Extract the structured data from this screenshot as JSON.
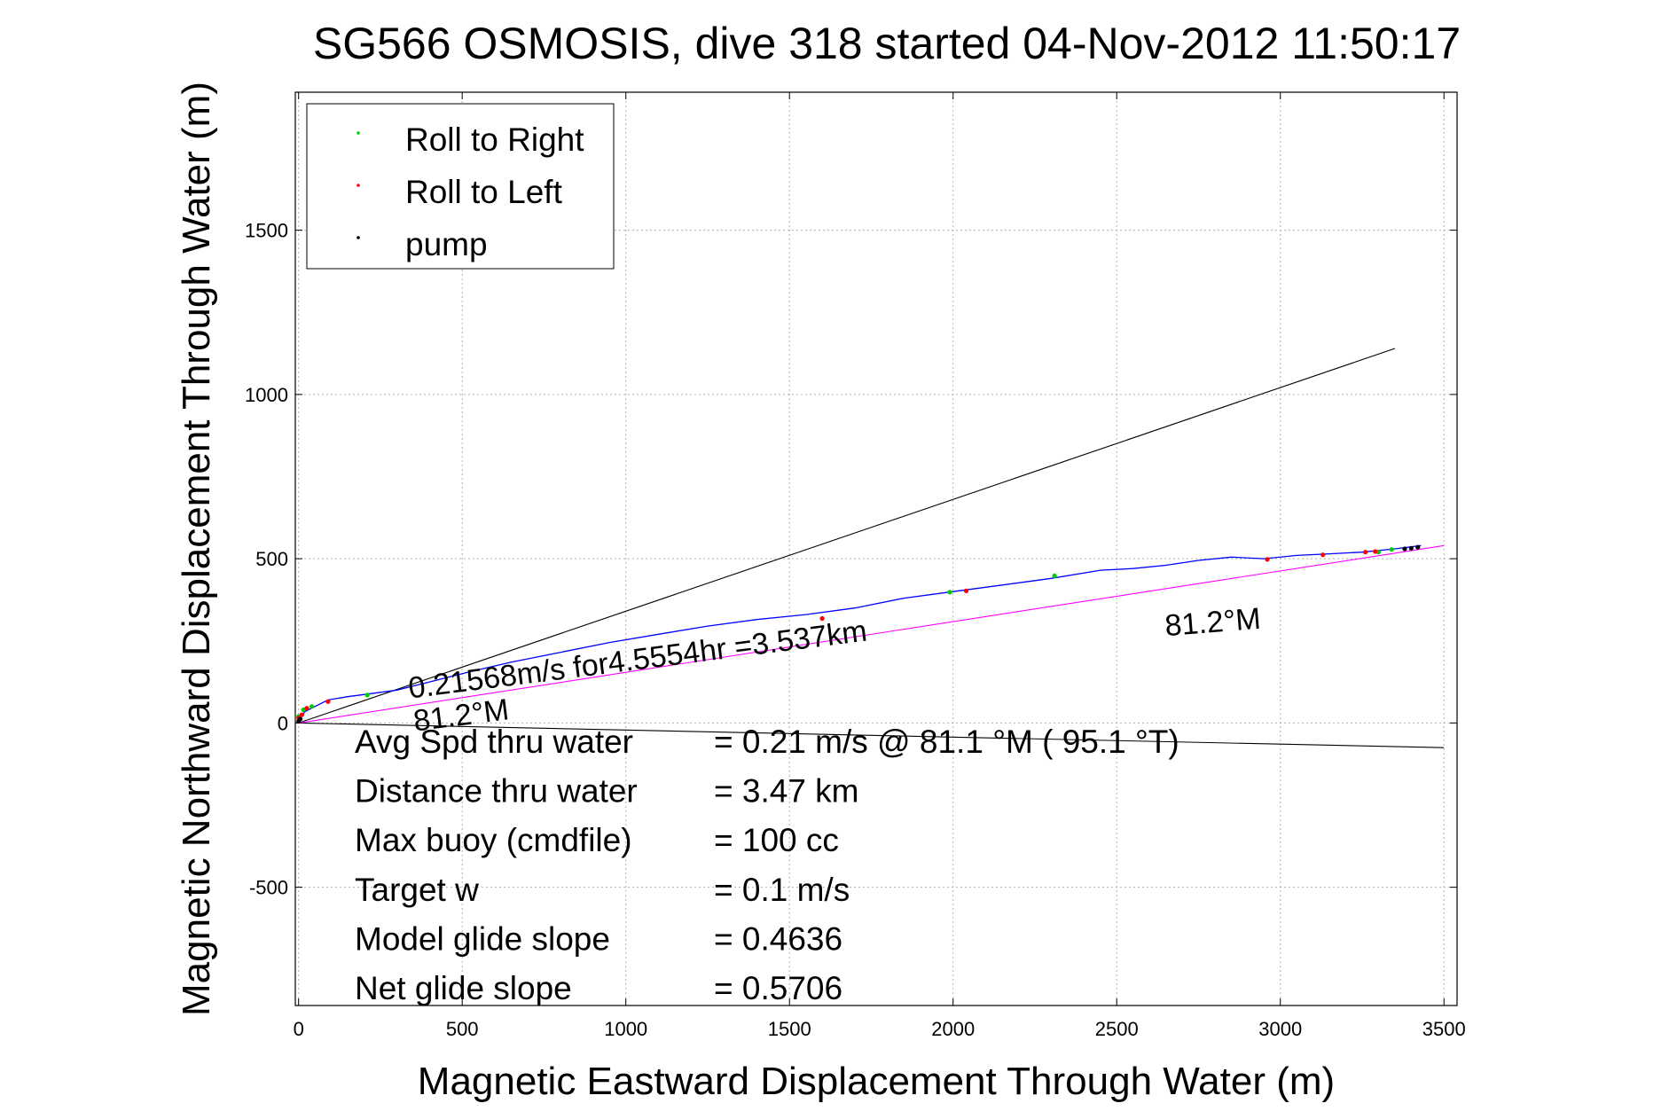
{
  "chart_data": {
    "type": "line",
    "title": "SG566 OSMOSIS, dive 318 started 04-Nov-2012 11:50:17",
    "xlabel": "Magnetic Eastward Displacement Through Water (m)",
    "ylabel": "Magnetic Northward Displacement Through Water (m)",
    "xlim": [
      -10,
      3540
    ],
    "ylim": [
      -860,
      1920
    ],
    "xticks": [
      0,
      500,
      1000,
      1500,
      2000,
      2500,
      3000,
      3500
    ],
    "yticks": [
      -500,
      0,
      500,
      1000,
      1500
    ],
    "grid": true,
    "legend_position": "top-left",
    "legend": [
      {
        "label": "Roll to Right",
        "color": "#00cc00"
      },
      {
        "label": "Roll to Left",
        "color": "#ff0000"
      },
      {
        "label": "pump",
        "color": "#000000"
      }
    ],
    "series": [
      {
        "name": "track",
        "color": "#0000ff",
        "x": [
          0,
          20,
          50,
          90,
          150,
          210,
          300,
          400,
          520,
          650,
          800,
          950,
          1100,
          1250,
          1400,
          1550,
          1700,
          1850,
          2000,
          2150,
          2300,
          2450,
          2550,
          2650,
          2750,
          2850,
          2950,
          3050,
          3150,
          3250,
          3350,
          3430
        ],
        "y": [
          10,
          35,
          50,
          70,
          80,
          88,
          100,
          125,
          155,
          185,
          215,
          245,
          270,
          295,
          315,
          330,
          350,
          380,
          400,
          420,
          440,
          465,
          470,
          480,
          495,
          505,
          500,
          510,
          515,
          520,
          530,
          540
        ]
      },
      {
        "name": "roll_right",
        "color": "#00cc00",
        "x": [
          0,
          15,
          40,
          210,
          1990,
          2310,
          3300,
          3340
        ],
        "y": [
          20,
          40,
          50,
          85,
          398,
          448,
          520,
          528
        ]
      },
      {
        "name": "roll_left",
        "color": "#ff0000",
        "x": [
          0,
          10,
          25,
          90,
          1600,
          2040,
          2960,
          3130,
          3260,
          3290
        ],
        "y": [
          15,
          25,
          45,
          65,
          318,
          402,
          498,
          512,
          520,
          522
        ]
      },
      {
        "name": "pump",
        "color": "#000000",
        "x": [
          0,
          5,
          3380,
          3400,
          3420
        ],
        "y": [
          5,
          12,
          530,
          532,
          535
        ]
      },
      {
        "name": "heading_line",
        "color": "#ff00ff",
        "x": [
          0,
          3500
        ],
        "y": [
          0,
          540
        ]
      },
      {
        "name": "bound_upper",
        "color": "#000000",
        "x": [
          0,
          3350
        ],
        "y": [
          0,
          1140
        ]
      },
      {
        "name": "bound_lower",
        "color": "#000000",
        "x": [
          0,
          3500
        ],
        "y": [
          0,
          -75
        ]
      }
    ],
    "annotations": [
      {
        "text": "0.21568m/s for4.5554hr =3.537km",
        "x": 340,
        "y": 75
      },
      {
        "text": "81.2°M",
        "x": 355,
        "y": -25
      },
      {
        "text": "81.2°M",
        "x": 2650,
        "y": 265
      }
    ],
    "stats": [
      {
        "label": "Avg Spd thru water",
        "value": "=  0.21 m/s @  81.1 °M ( 95.1 °T)"
      },
      {
        "label": "Distance thru water",
        "value": "=  3.47 km"
      },
      {
        "label": "Max buoy (cmdfile)",
        "value": "= 100 cc"
      },
      {
        "label": "Target w",
        "value": "= 0.1 m/s"
      },
      {
        "label": "Model glide slope",
        "value": "= 0.4636"
      },
      {
        "label": "Net glide slope",
        "value": "= 0.5706"
      }
    ]
  }
}
